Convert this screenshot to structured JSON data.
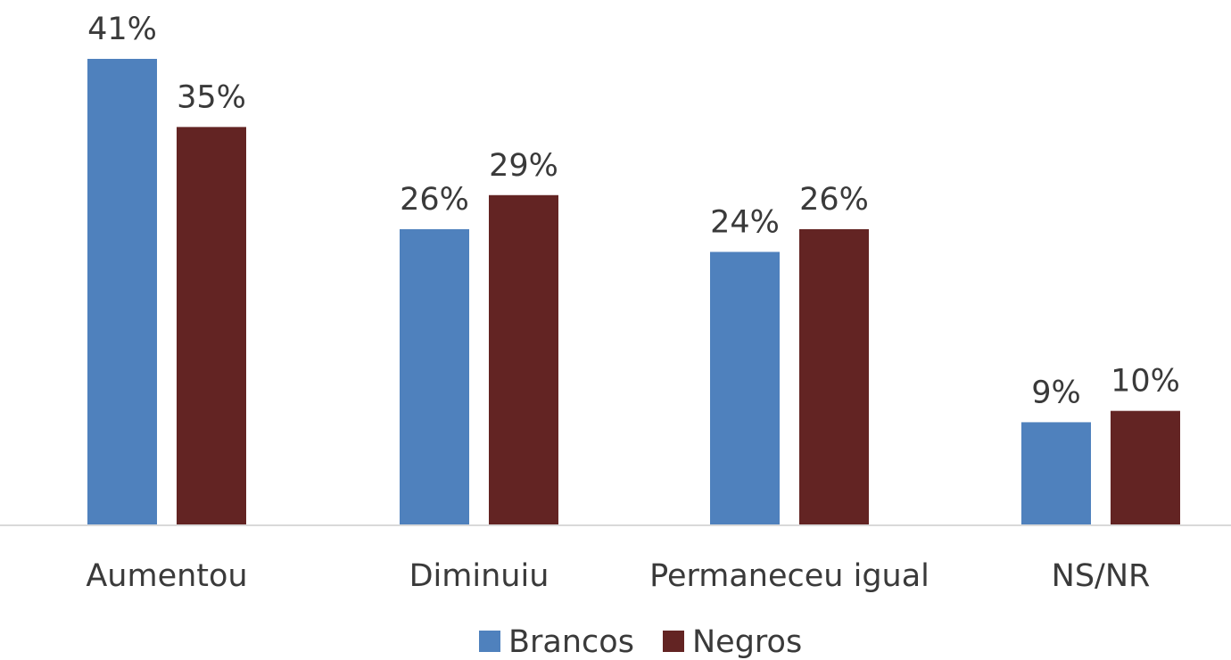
{
  "chart_data": {
    "type": "bar",
    "categories": [
      "Aumentou",
      "Diminuiu",
      "Permaneceu igual",
      "NS/NR"
    ],
    "series": [
      {
        "name": "Brancos",
        "values": [
          41,
          26,
          24,
          9
        ],
        "labels": [
          "41%",
          "26%",
          "24%",
          "9%"
        ],
        "color": "#4f81bd"
      },
      {
        "name": "Negros",
        "values": [
          35,
          29,
          26,
          10
        ],
        "labels": [
          "35%",
          "29%",
          "26%",
          "10%"
        ],
        "color": "#632423"
      }
    ],
    "unit": "%",
    "ylim": [
      0,
      41
    ],
    "grid": false,
    "legend": "bottom-center",
    "axis_color": "#d9d9d9"
  }
}
